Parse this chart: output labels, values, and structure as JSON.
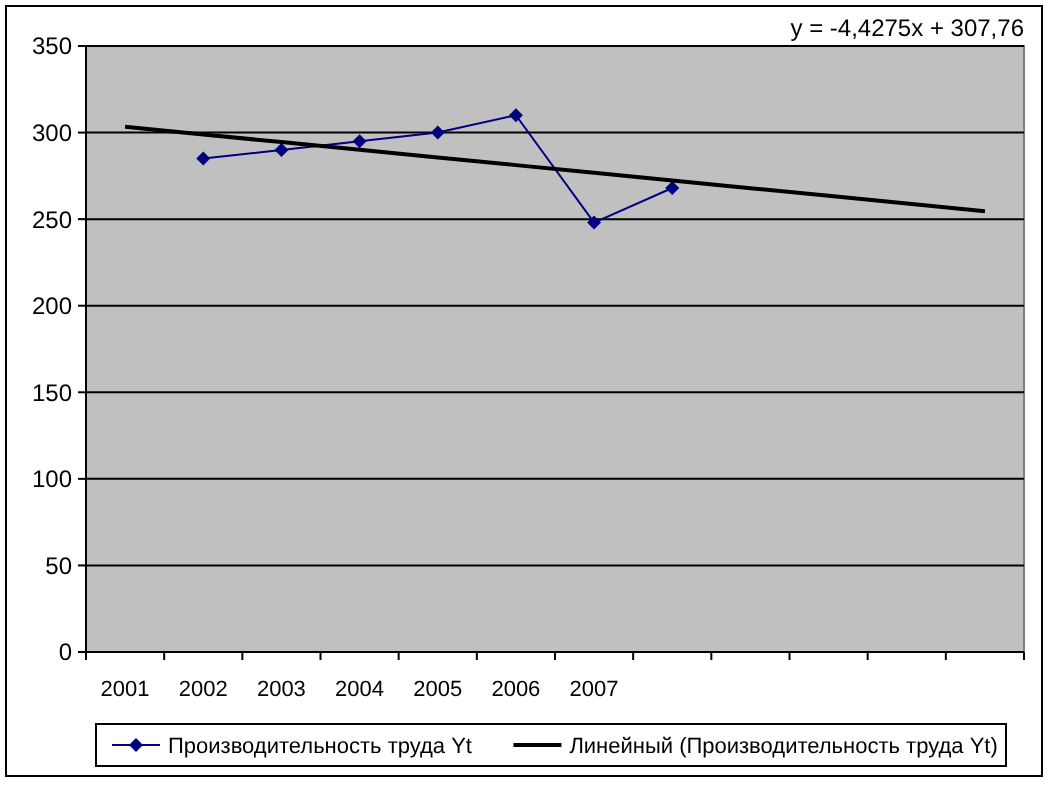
{
  "chart_data": {
    "type": "line",
    "categories": [
      "2001",
      "2002",
      "2003",
      "2004",
      "2005",
      "2006",
      "2007",
      null,
      null,
      null,
      null,
      null
    ],
    "series": [
      {
        "name": "Производительность труда Yt",
        "color": "#000080",
        "values": [
          null,
          285,
          290,
          295,
          300,
          310,
          248,
          268,
          null,
          null,
          null,
          null
        ],
        "marker": "diamond"
      },
      {
        "name": "Линейный (Производительность труда Yt)",
        "color": "#000000",
        "values": [
          303.3,
          298.9,
          294.5,
          290.1,
          285.6,
          281.2,
          276.8,
          272.3,
          267.9,
          263.5,
          259.1,
          254.6
        ],
        "marker": "none"
      }
    ],
    "ylim": [
      0,
      350
    ],
    "yticks": [
      0,
      50,
      100,
      150,
      200,
      250,
      300,
      350
    ],
    "grid": "y",
    "legend": "bottom",
    "annotations": [
      "y = -4,4275x + 307,76"
    ]
  }
}
